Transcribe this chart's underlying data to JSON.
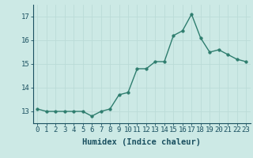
{
  "x": [
    0,
    1,
    2,
    3,
    4,
    5,
    6,
    7,
    8,
    9,
    10,
    11,
    12,
    13,
    14,
    15,
    16,
    17,
    18,
    19,
    20,
    21,
    22,
    23
  ],
  "y": [
    13.1,
    13.0,
    13.0,
    13.0,
    13.0,
    13.0,
    12.8,
    13.0,
    13.1,
    13.7,
    13.8,
    14.8,
    14.8,
    15.1,
    15.1,
    16.2,
    16.4,
    17.1,
    16.1,
    15.5,
    15.6,
    15.4,
    15.2,
    15.1
  ],
  "line_color": "#2E7D6E",
  "bg_color": "#CCE9E5",
  "grid_color": "#BBDBD7",
  "xlabel": "Humidex (Indice chaleur)",
  "ylim": [
    12.5,
    17.5
  ],
  "yticks": [
    13,
    14,
    15,
    16,
    17
  ],
  "xticks": [
    0,
    1,
    2,
    3,
    4,
    5,
    6,
    7,
    8,
    9,
    10,
    11,
    12,
    13,
    14,
    15,
    16,
    17,
    18,
    19,
    20,
    21,
    22,
    23
  ],
  "marker_size": 2.5,
  "line_width": 1.0,
  "xlabel_fontsize": 7.5,
  "tick_fontsize": 6.5,
  "text_color": "#1A5060"
}
